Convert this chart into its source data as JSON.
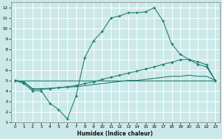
{
  "xlabel": "Humidex (Indice chaleur)",
  "xlim": [
    -0.5,
    23.5
  ],
  "ylim": [
    1,
    12.5
  ],
  "xticks": [
    0,
    1,
    2,
    3,
    4,
    5,
    6,
    7,
    8,
    9,
    10,
    11,
    12,
    13,
    14,
    15,
    16,
    17,
    18,
    19,
    20,
    21,
    22,
    23
  ],
  "yticks": [
    1,
    2,
    3,
    4,
    5,
    6,
    7,
    8,
    9,
    10,
    11,
    12
  ],
  "bg_color": "#cce9e9",
  "grid_color": "#ffffff",
  "line_color": "#1a7a6e",
  "line1_x": [
    0,
    1,
    2,
    3,
    4,
    5,
    6,
    7,
    8,
    9,
    10,
    11,
    12,
    13,
    14,
    15,
    16,
    17,
    18,
    19,
    20,
    21,
    22,
    23
  ],
  "line1_y": [
    5.0,
    4.7,
    4.0,
    4.0,
    2.8,
    2.2,
    1.3,
    3.5,
    7.2,
    8.8,
    9.7,
    11.0,
    11.2,
    11.5,
    11.5,
    11.6,
    12.0,
    10.7,
    8.5,
    7.5,
    7.0,
    6.8,
    6.5,
    5.0
  ],
  "line2_x": [
    0,
    1,
    2,
    3,
    4,
    5,
    6,
    7,
    8,
    9,
    10,
    11,
    12,
    13,
    14,
    15,
    16,
    17,
    18,
    19,
    20,
    21,
    22,
    23
  ],
  "line2_y": [
    5.0,
    4.85,
    4.15,
    4.15,
    4.2,
    4.3,
    4.4,
    4.5,
    4.7,
    4.85,
    5.1,
    5.3,
    5.5,
    5.7,
    5.9,
    6.1,
    6.3,
    6.55,
    6.75,
    7.0,
    7.0,
    6.55,
    6.3,
    5.0
  ],
  "line3_x": [
    0,
    1,
    2,
    3,
    4,
    5,
    6,
    7,
    8,
    9,
    10,
    11,
    12,
    13,
    14,
    15,
    16,
    17,
    18,
    19,
    20,
    21,
    22,
    23
  ],
  "line3_y": [
    5.0,
    4.88,
    4.2,
    4.2,
    4.25,
    4.3,
    4.35,
    4.4,
    4.5,
    4.6,
    4.7,
    4.8,
    4.9,
    5.0,
    5.0,
    5.1,
    5.2,
    5.3,
    5.4,
    5.4,
    5.5,
    5.4,
    5.4,
    5.0
  ],
  "line4_x": [
    0,
    23
  ],
  "line4_y": [
    5.0,
    5.0
  ]
}
